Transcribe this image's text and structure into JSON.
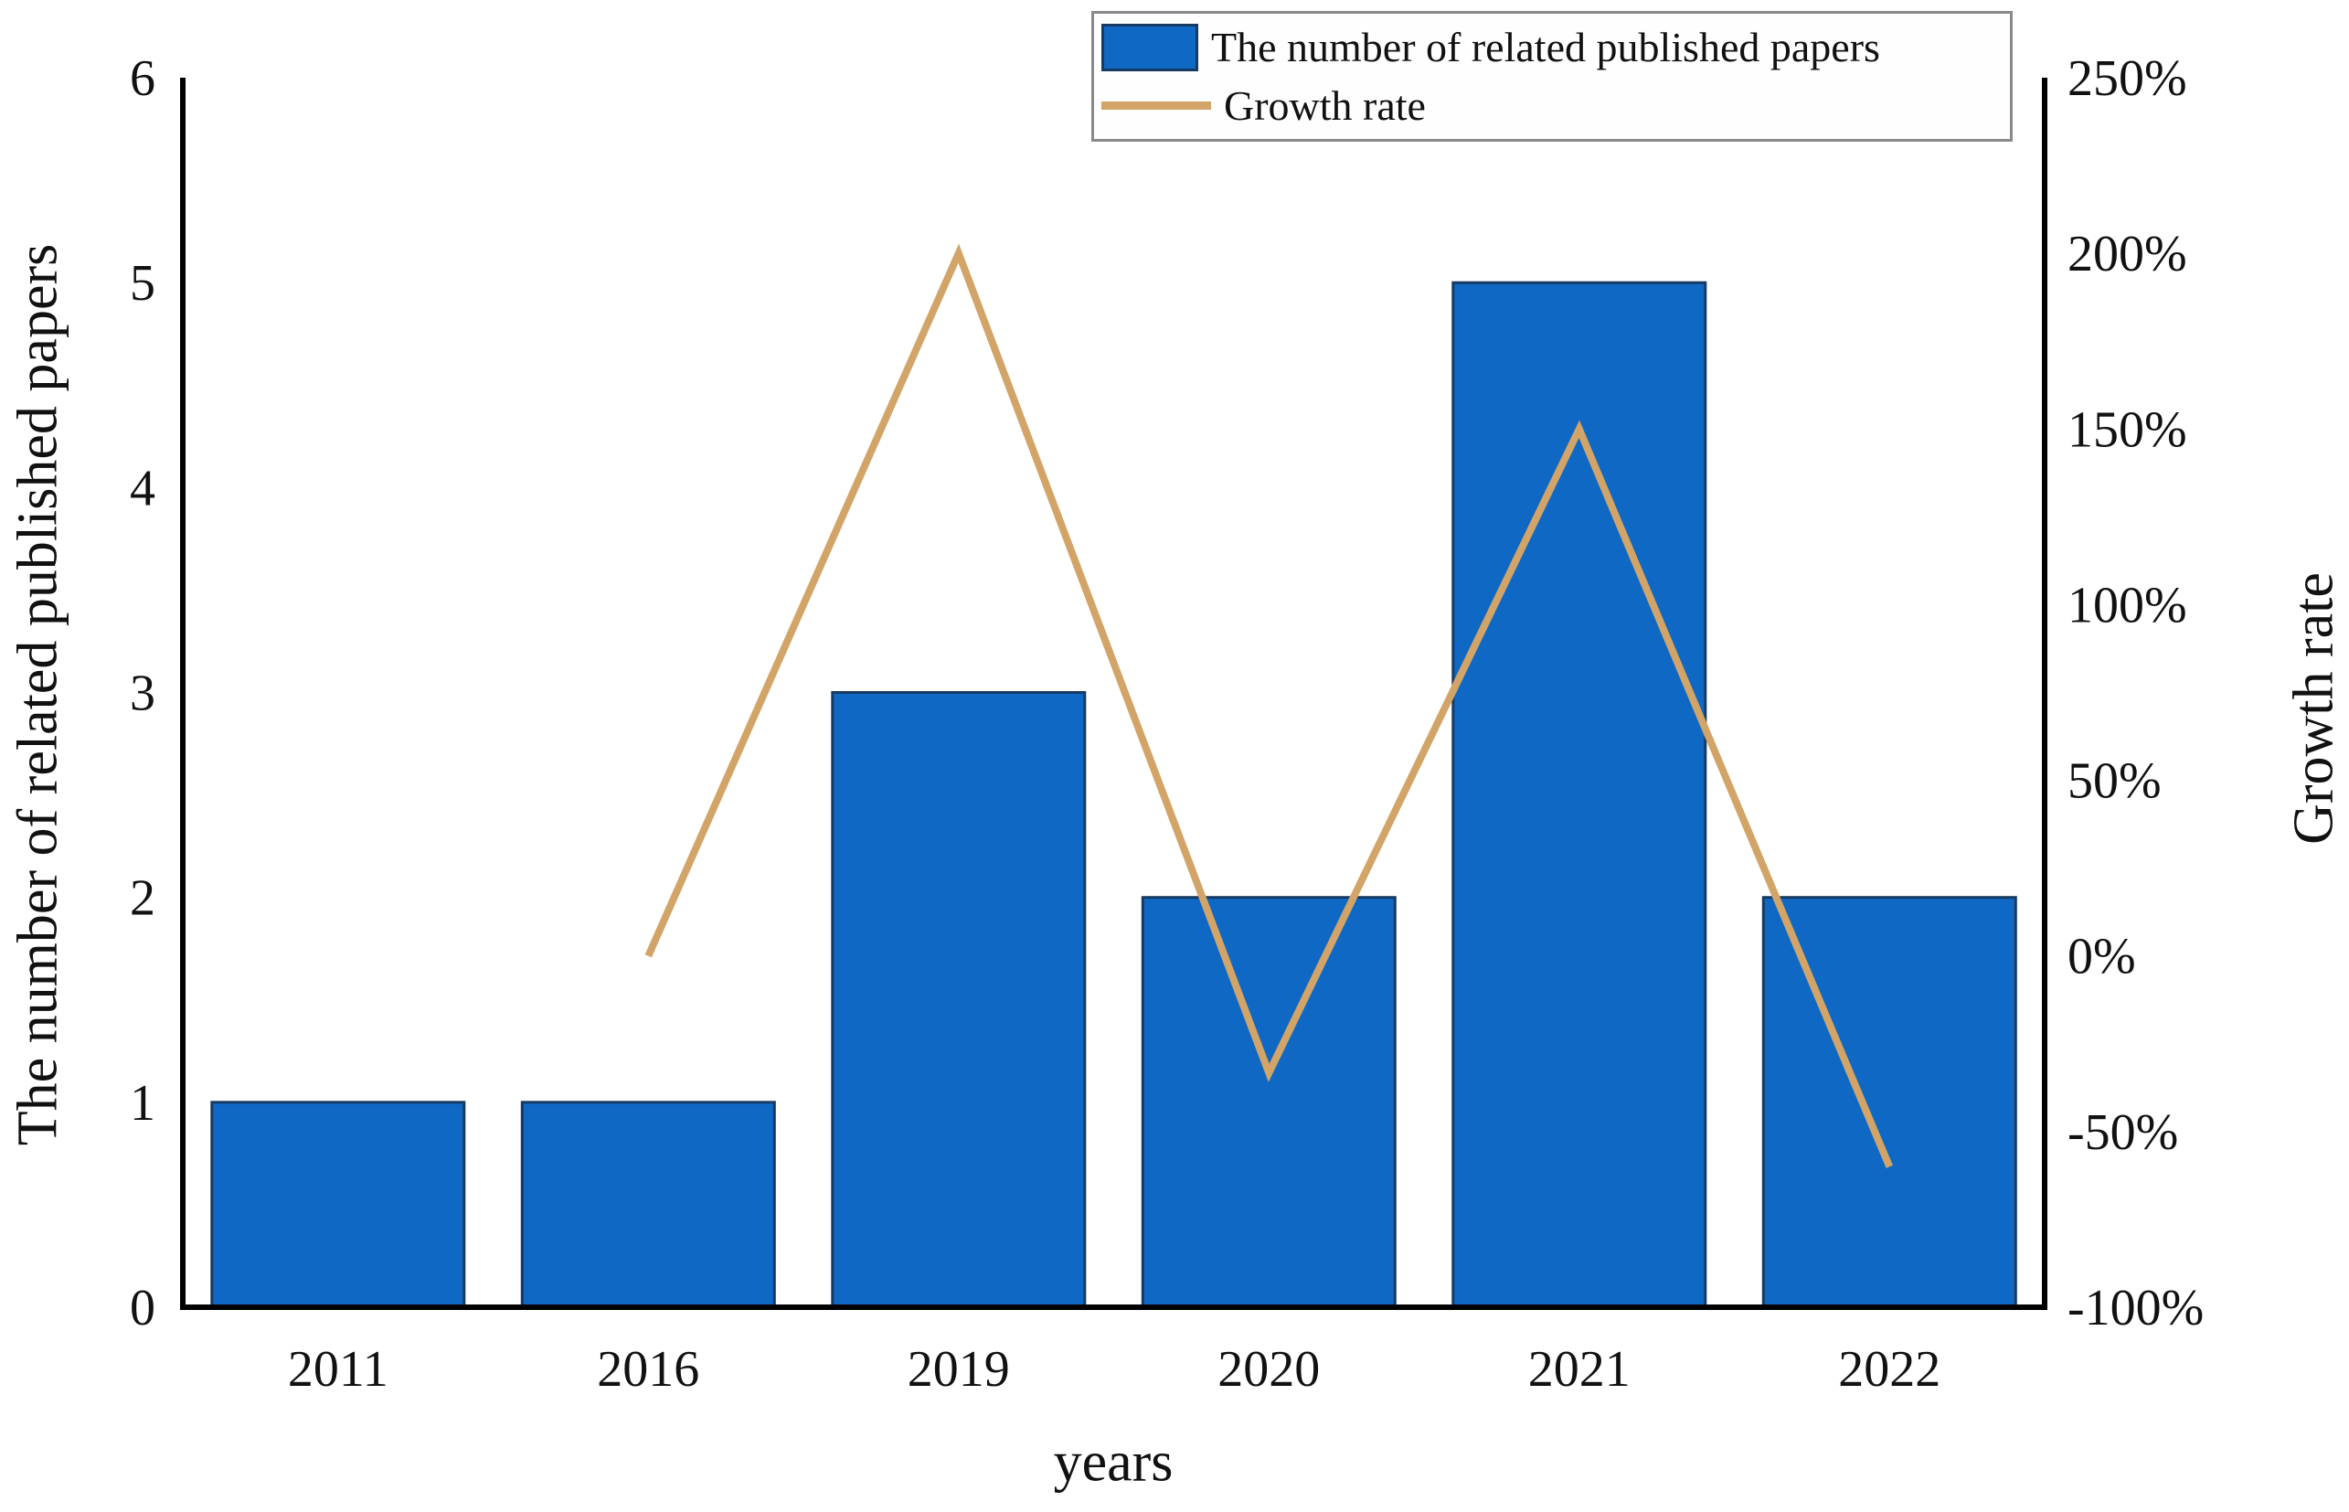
{
  "chart_data": {
    "type": "bar+line",
    "categories": [
      "2011",
      "2016",
      "2019",
      "2020",
      "2021",
      "2022"
    ],
    "series": [
      {
        "name": "The number of related published papers",
        "type": "bar",
        "axis": "left",
        "values": [
          1,
          1,
          3,
          2,
          5,
          2
        ]
      },
      {
        "name": "Growth rate",
        "type": "line",
        "axis": "right",
        "values": [
          null,
          0,
          200,
          -33.3,
          150,
          -60
        ]
      }
    ],
    "left_axis": {
      "title": "The number of related published papers",
      "min": 0,
      "max": 6,
      "tick_values": [
        0,
        1,
        2,
        3,
        4,
        5,
        6
      ],
      "tick_labels": [
        "0",
        "1",
        "2",
        "3",
        "4",
        "5",
        "6"
      ]
    },
    "right_axis": {
      "title": "Growth rate",
      "min": -100,
      "max": 250,
      "tick_values": [
        -100,
        -50,
        0,
        50,
        100,
        150,
        200,
        250
      ],
      "tick_labels": [
        "-100%",
        "-50%",
        "0%",
        "50%",
        "100%",
        "150%",
        "200%",
        "250%"
      ]
    },
    "x_axis": {
      "title": "years"
    },
    "legend": {
      "position": "top-right",
      "entries": [
        {
          "label": "The number of related published papers",
          "marker": "bar"
        },
        {
          "label": "Growth rate",
          "marker": "line"
        }
      ]
    },
    "grid": false
  },
  "colors": {
    "bar_fill": "#0f68c4",
    "bar_border": "#173a63",
    "line": "#d2a467",
    "axis_line": "#000000",
    "text": "#111111",
    "legend_border": "#8a8a8a",
    "background": "#ffffff"
  }
}
